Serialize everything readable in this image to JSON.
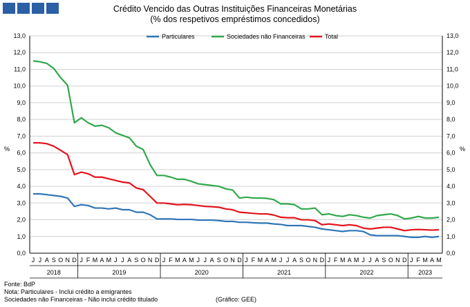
{
  "header": {
    "logo_icon": "bdp-logo-blocks",
    "title": "Crédito Vencido das Outras Instituições Financeiras Monetárias",
    "subtitle": "(% dos respetivos empréstimos concedidos)"
  },
  "footer": {
    "source": "Fonte: BdP",
    "note1": "Nota: Particulares - Inclui crédito a emigrantes",
    "note2": "Sociedades não Financeiras - Não inclui crédito titulado",
    "graph_label": "(Gráfico: GEE)"
  },
  "chart_data": {
    "type": "line",
    "ylabel": "%",
    "ylabel_right": "%",
    "ylim": [
      0,
      13
    ],
    "ytick_step": 1,
    "ytick_labels": [
      "0,0",
      "1,0",
      "2,0",
      "3,0",
      "4,0",
      "5,0",
      "6,0",
      "7,0",
      "8,0",
      "9,0",
      "10,0",
      "11,0",
      "12,0",
      "13,0"
    ],
    "grid": "horizontal",
    "legend_position": "top",
    "months": [
      "J",
      "J",
      "A",
      "S",
      "O",
      "N",
      "D",
      "J",
      "F",
      "M",
      "A",
      "M",
      "J",
      "J",
      "A",
      "S",
      "O",
      "N",
      "D",
      "J",
      "F",
      "M",
      "A",
      "M",
      "J",
      "J",
      "A",
      "S",
      "O",
      "N",
      "D",
      "J",
      "F",
      "M",
      "A",
      "M",
      "J",
      "J",
      "A",
      "S",
      "O",
      "N",
      "D",
      "J",
      "F",
      "M",
      "A",
      "M",
      "J",
      "J",
      "A",
      "S",
      "O",
      "N",
      "D",
      "J",
      "F",
      "M",
      "A",
      "M"
    ],
    "years": [
      {
        "label": "2018",
        "start": 0,
        "end": 6
      },
      {
        "label": "2019",
        "start": 7,
        "end": 18
      },
      {
        "label": "2020",
        "start": 19,
        "end": 30
      },
      {
        "label": "2021",
        "start": 31,
        "end": 42
      },
      {
        "label": "2022",
        "start": 43,
        "end": 54
      },
      {
        "label": "2023",
        "start": 55,
        "end": 59
      }
    ],
    "series": [
      {
        "name": "Particulares",
        "color": "#2e75b6",
        "values": [
          3.55,
          3.55,
          3.5,
          3.45,
          3.4,
          3.3,
          2.8,
          2.9,
          2.85,
          2.7,
          2.7,
          2.65,
          2.7,
          2.6,
          2.6,
          2.45,
          2.45,
          2.3,
          2.05,
          2.05,
          2.05,
          2.02,
          2.02,
          2.02,
          1.98,
          1.98,
          1.98,
          1.95,
          1.9,
          1.9,
          1.85,
          1.85,
          1.82,
          1.8,
          1.8,
          1.75,
          1.72,
          1.65,
          1.65,
          1.65,
          1.6,
          1.55,
          1.45,
          1.4,
          1.35,
          1.3,
          1.35,
          1.35,
          1.3,
          1.1,
          1.05,
          1.05,
          1.05,
          1.05,
          1.0,
          0.95,
          0.95,
          1.0,
          0.95,
          1.0
        ]
      },
      {
        "name": "Sociedades não Financeiras",
        "color": "#2ea84a",
        "values": [
          11.5,
          11.45,
          11.35,
          11.05,
          10.5,
          10.05,
          7.8,
          8.1,
          7.8,
          7.6,
          7.65,
          7.5,
          7.2,
          7.05,
          6.9,
          6.4,
          6.2,
          5.3,
          4.65,
          4.65,
          4.55,
          4.42,
          4.42,
          4.3,
          4.15,
          4.1,
          4.05,
          4.0,
          3.85,
          3.78,
          3.3,
          3.35,
          3.3,
          3.3,
          3.28,
          3.2,
          2.95,
          2.95,
          2.9,
          2.65,
          2.65,
          2.7,
          2.3,
          2.35,
          2.25,
          2.2,
          2.3,
          2.25,
          2.15,
          2.1,
          2.25,
          2.3,
          2.35,
          2.25,
          2.05,
          2.1,
          2.2,
          2.1,
          2.1,
          2.15
        ]
      },
      {
        "name": "Total",
        "color": "#e3121b",
        "values": [
          6.6,
          6.6,
          6.55,
          6.4,
          6.15,
          5.9,
          4.7,
          4.85,
          4.75,
          4.55,
          4.55,
          4.45,
          4.35,
          4.25,
          4.2,
          3.9,
          3.8,
          3.4,
          3.0,
          3.0,
          2.95,
          2.9,
          2.92,
          2.9,
          2.85,
          2.8,
          2.78,
          2.75,
          2.65,
          2.6,
          2.45,
          2.42,
          2.38,
          2.35,
          2.35,
          2.28,
          2.15,
          2.12,
          2.12,
          2.0,
          2.0,
          1.95,
          1.7,
          1.75,
          1.7,
          1.65,
          1.7,
          1.65,
          1.5,
          1.45,
          1.5,
          1.55,
          1.55,
          1.45,
          1.35,
          1.4,
          1.42,
          1.4,
          1.38,
          1.4
        ]
      }
    ]
  }
}
